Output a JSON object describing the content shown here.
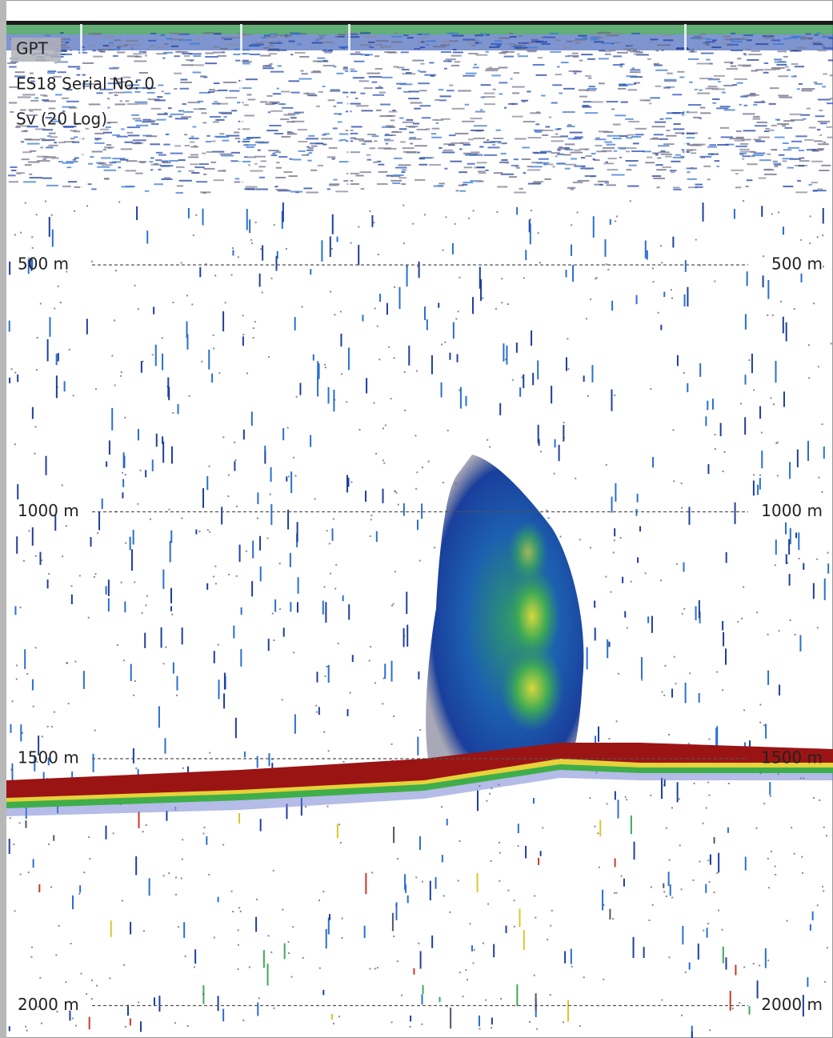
{
  "header": {
    "lines": [
      "GPT",
      "ES18 Serial No: 0",
      "Sv (20 Log)"
    ]
  },
  "depth_lines": [
    {
      "left": "500 m",
      "right": "500 m"
    },
    {
      "left": "1000 m",
      "right": "1000 m"
    },
    {
      "left": "1500 m",
      "right": "1500 m"
    },
    {
      "left": "2000 m",
      "right": "2000 m"
    }
  ]
}
